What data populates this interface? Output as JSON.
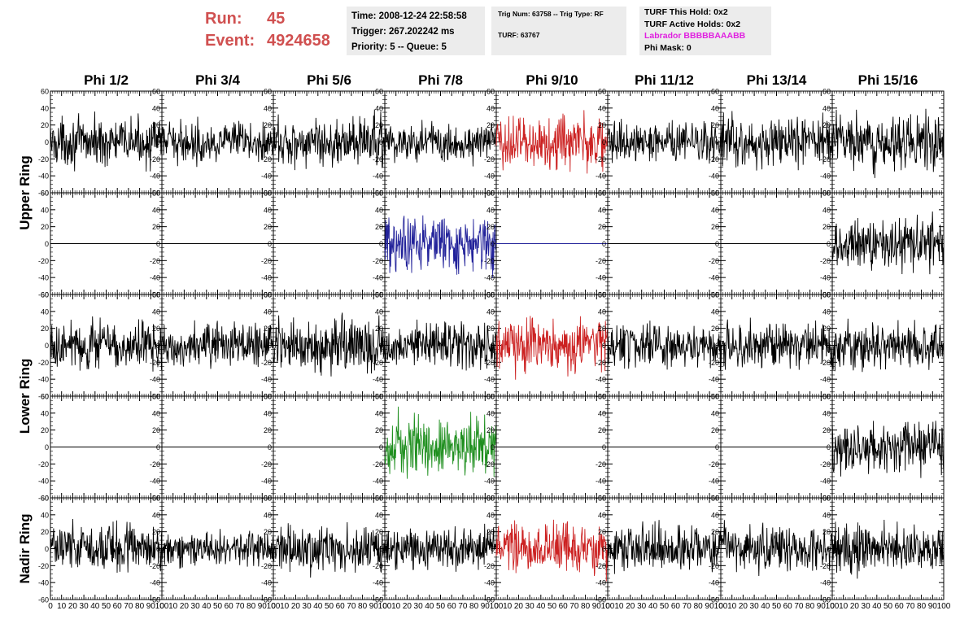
{
  "header": {
    "run_label": "Run:",
    "run_value": "45",
    "event_label": "Event:",
    "event_value": "4924658",
    "time": "Time: 2008-12-24 22:58:58",
    "trigger": "Trigger: 267.202242 ms",
    "priority": "Priority: 5 -- Queue: 5",
    "trig_num": "Trig Num: 63758 -- Trig Type: RF",
    "turf": "TURF: 63767",
    "turf_this_hold": "TURF This Hold: 0x2",
    "turf_active_holds": "TURF Active Holds: 0x2",
    "labrador": "Labrador BBBBBAAABB",
    "phi_mask": "Phi Mask: 0"
  },
  "colors": {
    "run_text": "#d05050",
    "labrador_text": "#e020e0",
    "trace_default": "#000000",
    "trace_red": "#cc2222",
    "trace_blue": "#22229a",
    "trace_green": "#1f8f1f"
  },
  "chart_data": {
    "type": "line",
    "columns": [
      "Phi 1/2",
      "Phi 3/4",
      "Phi 5/6",
      "Phi 7/8",
      "Phi 9/10",
      "Phi 11/12",
      "Phi 13/14",
      "Phi 15/16"
    ],
    "ring_labels": [
      "Upper Ring",
      "Lower Ring",
      "Nadir Ring"
    ],
    "ring_row_spans": [
      [
        0,
        1
      ],
      [
        2,
        3
      ],
      [
        4,
        4
      ]
    ],
    "xlim": [
      0,
      100
    ],
    "ylim": [
      -60,
      60
    ],
    "x_ticks": [
      0,
      10,
      20,
      30,
      40,
      50,
      60,
      70,
      80,
      90,
      100
    ],
    "y_ticks": [
      -60,
      -40,
      -20,
      0,
      20,
      40,
      60
    ],
    "x_tick_labels": [
      "0",
      "10",
      "20",
      "30",
      "40",
      "50",
      "60",
      "70",
      "80",
      "90",
      "100"
    ],
    "y_tick_labels": [
      "-60",
      "-40",
      "-20",
      "0",
      "20",
      "40",
      "60"
    ],
    "grid": false,
    "num_points": 250,
    "panels": [
      {
        "row": 0,
        "col": 0,
        "amplitude": 13,
        "color": "trace_default"
      },
      {
        "row": 0,
        "col": 1,
        "amplitude": 11,
        "color": "trace_default"
      },
      {
        "row": 0,
        "col": 2,
        "amplitude": 14,
        "color": "trace_default"
      },
      {
        "row": 0,
        "col": 3,
        "amplitude": 12,
        "color": "trace_default"
      },
      {
        "row": 0,
        "col": 4,
        "amplitude": 16,
        "color": "trace_red"
      },
      {
        "row": 0,
        "col": 5,
        "amplitude": 11,
        "color": "trace_default"
      },
      {
        "row": 0,
        "col": 6,
        "amplitude": 14,
        "color": "trace_default"
      },
      {
        "row": 0,
        "col": 7,
        "amplitude": 15,
        "color": "trace_default"
      },
      {
        "row": 1,
        "col": 0,
        "amplitude": 0,
        "color": "trace_default"
      },
      {
        "row": 1,
        "col": 1,
        "amplitude": 0,
        "color": "trace_default"
      },
      {
        "row": 1,
        "col": 2,
        "amplitude": 0,
        "color": "trace_default"
      },
      {
        "row": 1,
        "col": 3,
        "amplitude": 15,
        "color": "trace_blue"
      },
      {
        "row": 1,
        "col": 4,
        "amplitude": 0,
        "color": "trace_blue"
      },
      {
        "row": 1,
        "col": 5,
        "amplitude": 0,
        "color": "trace_default"
      },
      {
        "row": 1,
        "col": 6,
        "amplitude": 0,
        "color": "trace_default"
      },
      {
        "row": 1,
        "col": 7,
        "amplitude": 15,
        "color": "trace_default"
      },
      {
        "row": 2,
        "col": 0,
        "amplitude": 14,
        "color": "trace_default"
      },
      {
        "row": 2,
        "col": 1,
        "amplitude": 12,
        "color": "trace_default"
      },
      {
        "row": 2,
        "col": 2,
        "amplitude": 15,
        "color": "trace_default"
      },
      {
        "row": 2,
        "col": 3,
        "amplitude": 13,
        "color": "trace_default"
      },
      {
        "row": 2,
        "col": 4,
        "amplitude": 15,
        "color": "trace_red"
      },
      {
        "row": 2,
        "col": 5,
        "amplitude": 12,
        "color": "trace_default"
      },
      {
        "row": 2,
        "col": 6,
        "amplitude": 13,
        "color": "trace_default"
      },
      {
        "row": 2,
        "col": 7,
        "amplitude": 13,
        "color": "trace_default"
      },
      {
        "row": 3,
        "col": 0,
        "amplitude": 0,
        "color": "trace_default"
      },
      {
        "row": 3,
        "col": 1,
        "amplitude": 0,
        "color": "trace_default"
      },
      {
        "row": 3,
        "col": 2,
        "amplitude": 0,
        "color": "trace_default"
      },
      {
        "row": 3,
        "col": 3,
        "amplitude": 17,
        "color": "trace_green"
      },
      {
        "row": 3,
        "col": 4,
        "amplitude": 0,
        "color": "trace_default"
      },
      {
        "row": 3,
        "col": 5,
        "amplitude": 0,
        "color": "trace_default"
      },
      {
        "row": 3,
        "col": 6,
        "amplitude": 0,
        "color": "trace_default"
      },
      {
        "row": 3,
        "col": 7,
        "amplitude": 16,
        "color": "trace_default"
      },
      {
        "row": 4,
        "col": 0,
        "amplitude": 14,
        "color": "trace_default"
      },
      {
        "row": 4,
        "col": 1,
        "amplitude": 10,
        "color": "trace_default"
      },
      {
        "row": 4,
        "col": 2,
        "amplitude": 13,
        "color": "trace_default"
      },
      {
        "row": 4,
        "col": 3,
        "amplitude": 12,
        "color": "trace_default"
      },
      {
        "row": 4,
        "col": 4,
        "amplitude": 14,
        "color": "trace_red"
      },
      {
        "row": 4,
        "col": 5,
        "amplitude": 13,
        "color": "trace_default"
      },
      {
        "row": 4,
        "col": 6,
        "amplitude": 14,
        "color": "trace_default"
      },
      {
        "row": 4,
        "col": 7,
        "amplitude": 13,
        "color": "trace_default"
      }
    ]
  }
}
